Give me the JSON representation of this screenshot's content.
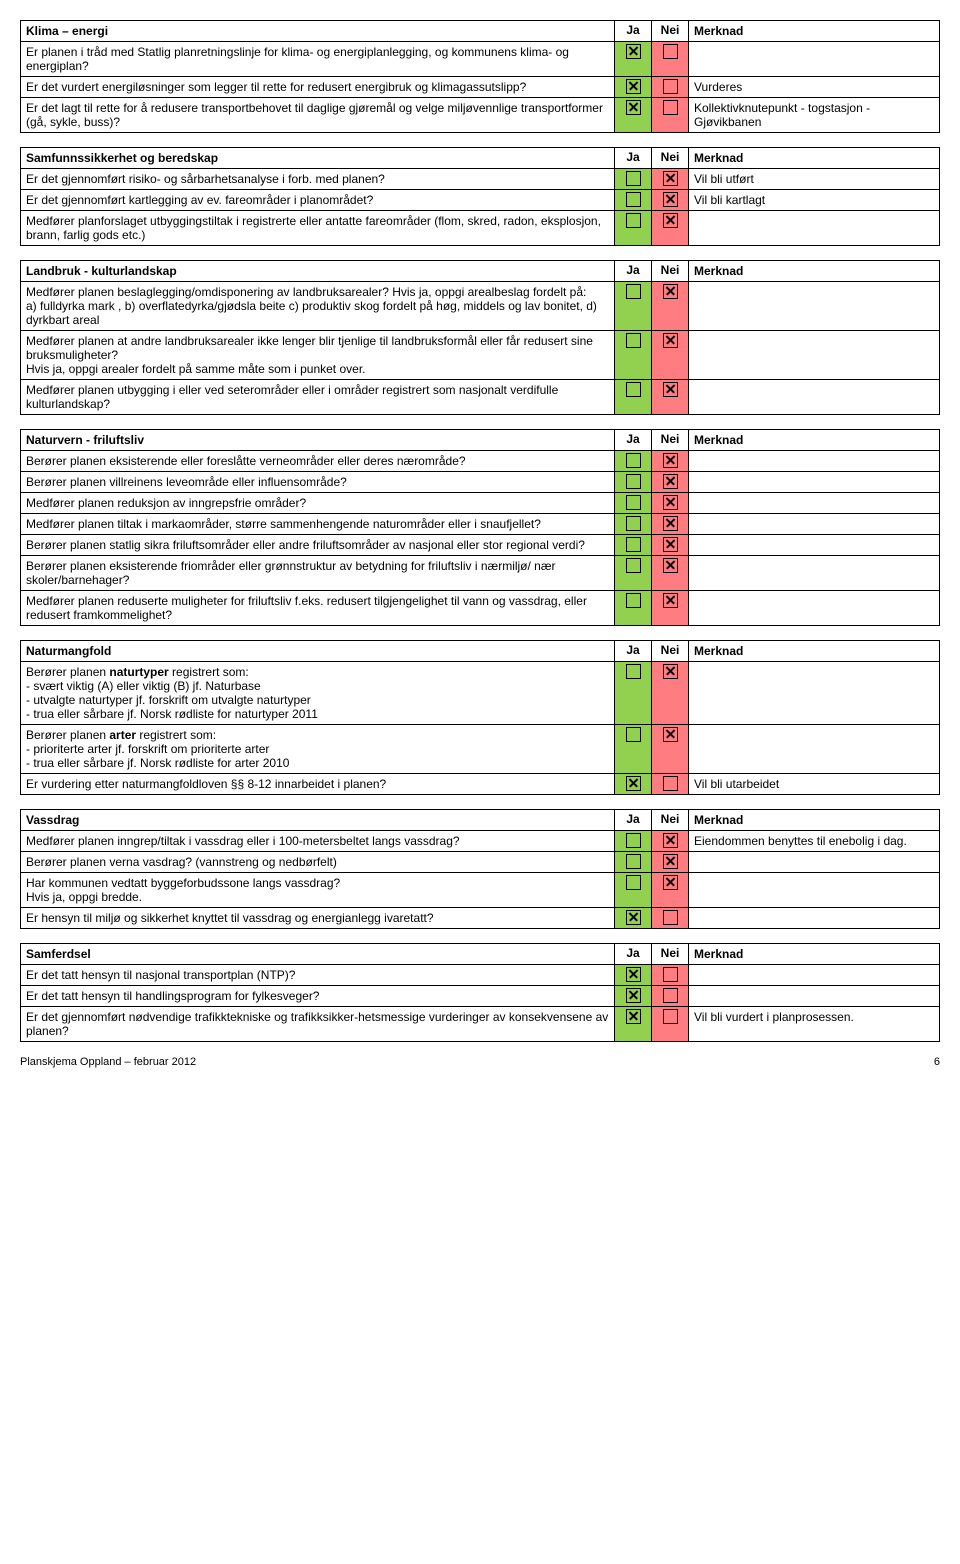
{
  "footer": "Planskjema Oppland – februar 2012",
  "pageNum": "6",
  "col_ja": "Ja",
  "col_nei": "Nei",
  "col_merk": "Merknad",
  "sections": [
    {
      "title": "Klima – energi",
      "rows": [
        {
          "q": "Er planen i tråd med Statlig planretningslinje for klima- og energiplanlegging, og kommunens klima- og energiplan?",
          "ja": true,
          "nei": false,
          "merk": ""
        },
        {
          "q": "Er det vurdert energiløsninger som legger til rette for redusert energibruk og klimagassutslipp?",
          "ja": true,
          "nei": false,
          "merk": "Vurderes"
        },
        {
          "q": "Er det lagt til rette for å redusere transportbehovet til daglige gjøremål og velge miljøvennlige transportformer (gå, sykle, buss)?",
          "ja": true,
          "nei": false,
          "merk": "Kollektivknutepunkt - togstasjon - Gjøvikbanen"
        }
      ]
    },
    {
      "title": "Samfunnssikkerhet og beredskap",
      "rows": [
        {
          "q": "Er det gjennomført risiko- og sårbarhetsanalyse i forb. med planen?",
          "ja": false,
          "nei": true,
          "merk": "Vil bli utført"
        },
        {
          "q": "Er det gjennomført kartlegging av ev. fareområder i planområdet?",
          "ja": false,
          "nei": true,
          "merk": "Vil bli kartlagt"
        },
        {
          "q": "Medfører planforslaget utbyggingstiltak i registrerte eller antatte fareområder (flom, skred, radon, eksplosjon, brann, farlig gods etc.)",
          "ja": false,
          "nei": true,
          "merk": ""
        }
      ]
    },
    {
      "title": "Landbruk - kulturlandskap",
      "rows": [
        {
          "q": "Medfører planen beslaglegging/omdisponering av landbruksarealer? Hvis ja, oppgi arealbeslag fordelt på:\na) fulldyrka mark , b) overflatedyrka/gjødsla beite  c) produktiv skog fordelt på høg, middels og lav bonitet, d) dyrkbart areal",
          "ja": false,
          "nei": true,
          "merk": ""
        },
        {
          "q": "Medfører planen at andre landbruksarealer ikke lenger blir tjenlige til landbruksformål eller får redusert sine bruksmuligheter?\nHvis ja, oppgi arealer fordelt på samme måte som i punket over.",
          "ja": false,
          "nei": true,
          "merk": ""
        },
        {
          "q": "Medfører planen utbygging i eller ved seterområder eller i områder registrert som nasjonalt verdifulle kulturlandskap?",
          "ja": false,
          "nei": true,
          "merk": ""
        }
      ]
    },
    {
      "title": "Naturvern - friluftsliv",
      "rows": [
        {
          "q": "Berører planen eksisterende eller foreslåtte verneområder eller deres nærområde?",
          "ja": false,
          "nei": true,
          "merk": ""
        },
        {
          "q": "Berører planen villreinens leveområde eller influensområde?",
          "ja": false,
          "nei": true,
          "merk": ""
        },
        {
          "q": "Medfører planen reduksjon av inngrepsfrie områder?",
          "ja": false,
          "nei": true,
          "merk": ""
        },
        {
          "q": "Medfører planen tiltak i markaområder, større sammenhengende naturområder eller i snaufjellet?",
          "ja": false,
          "nei": true,
          "merk": ""
        },
        {
          "q": "Berører planen statlig sikra friluftsområder eller andre friluftsområder av nasjonal eller stor regional verdi?",
          "ja": false,
          "nei": true,
          "merk": ""
        },
        {
          "q": "Berører planen eksisterende friområder eller grønnstruktur av betydning for friluftsliv i nærmiljø/ nær skoler/barnehager?",
          "ja": false,
          "nei": true,
          "merk": ""
        },
        {
          "q": "Medfører planen reduserte muligheter for friluftsliv f.eks. redusert tilgjengelighet til vann og vassdrag, eller redusert framkommelighet?",
          "ja": false,
          "nei": true,
          "merk": ""
        }
      ]
    },
    {
      "title": "Naturmangfold",
      "rows": [
        {
          "q": "Berører planen naturtyper registrert som:\n- svært viktig (A) eller viktig (B) jf. Naturbase\n- utvalgte naturtyper jf. forskrift om utvalgte naturtyper\n- trua eller sårbare jf. Norsk rødliste for naturtyper 2011",
          "ja": false,
          "nei": true,
          "merk": ""
        },
        {
          "q": "Berører planen arter registrert som:\n- prioriterte arter jf. forskrift om prioriterte arter\n- trua eller sårbare jf. Norsk rødliste for arter 2010",
          "ja": false,
          "nei": true,
          "merk": ""
        },
        {
          "q": "Er vurdering etter naturmangfoldloven §§ 8-12 innarbeidet i planen?",
          "ja": true,
          "nei": false,
          "merk": "Vil bli utarbeidet"
        }
      ]
    },
    {
      "title": "Vassdrag",
      "rows": [
        {
          "q": "Medfører planen inngrep/tiltak i vassdrag eller i 100-metersbeltet langs vassdrag?",
          "ja": false,
          "nei": true,
          "merk": "Eiendommen benyttes til enebolig i dag."
        },
        {
          "q": "Berører planen verna vasdrag? (vannstreng og nedbørfelt)",
          "ja": false,
          "nei": true,
          "merk": ""
        },
        {
          "q": "Har kommunen vedtatt byggeforbudssone langs vassdrag?\nHvis ja, oppgi bredde.",
          "ja": false,
          "nei": true,
          "merk": ""
        },
        {
          "q": "Er hensyn til miljø og sikkerhet knyttet til vassdrag og energianlegg ivaretatt?",
          "ja": true,
          "nei": false,
          "merk": ""
        }
      ]
    },
    {
      "title": "Samferdsel",
      "rows": [
        {
          "q": "Er det tatt hensyn til nasjonal transportplan (NTP)?",
          "ja": true,
          "nei": false,
          "merk": ""
        },
        {
          "q": "Er det tatt hensyn til handlingsprogram for fylkesveger?",
          "ja": true,
          "nei": false,
          "merk": ""
        },
        {
          "q": "Er det gjennomført nødvendige trafikktekniske og trafikksikker-hetsmessige vurderinger av konsekvensene av planen?",
          "ja": true,
          "nei": false,
          "merk": "Vil bli vurdert i planprosessen."
        }
      ]
    }
  ]
}
